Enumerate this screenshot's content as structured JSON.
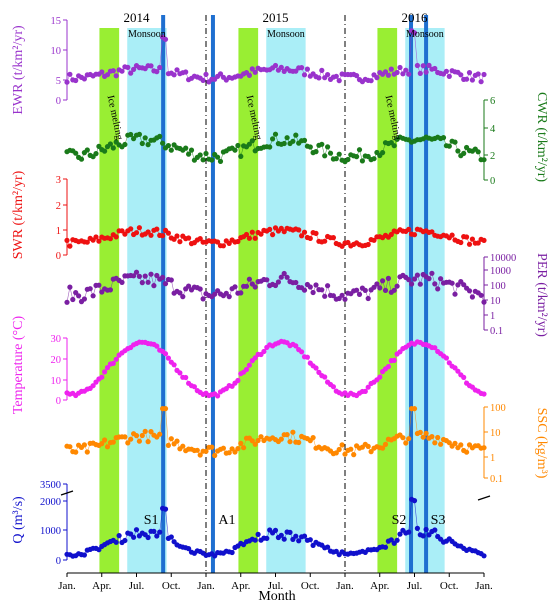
{
  "chart_data": {
    "type": "scatter",
    "title": "",
    "xlabel": "Month",
    "x_ticks": [
      "Jan.",
      "Apr.",
      "Jul.",
      "Oct.",
      "Jan.",
      "Apr.",
      "Jul.",
      "Oct.",
      "Jan.",
      "Apr.",
      "Jul.",
      "Oct.",
      "Jan."
    ],
    "years": [
      "2014",
      "2015",
      "2016"
    ],
    "season_labels": {
      "monsoon": "Monsoon",
      "ice_melting": "Ice melting"
    },
    "events": [
      "S1",
      "A1",
      "S2",
      "S3"
    ],
    "colors": {
      "EWR": "#9933cc",
      "CWR": "#1a7a1a",
      "SWR": "#ee1111",
      "PER": "#7a1fa2",
      "Temperature": "#ee22ee",
      "SSC": "#ff8800",
      "Q": "#1010cc",
      "monsoon_band": "#aaeef7",
      "ice_melting_band": "#99ee33",
      "event_line": "#1f6fd0"
    },
    "panels": [
      {
        "key": "EWR",
        "label": "EWR (t/km²/yr)",
        "side": "left",
        "ticks": [
          "15",
          "10",
          "5",
          "0"
        ],
        "typical_range": [
          1,
          9
        ]
      },
      {
        "key": "CWR",
        "label": "CWR (t/km²/yr)",
        "side": "right",
        "ticks": [
          "6",
          "4",
          "2",
          "0"
        ],
        "typical_range": [
          0.5,
          4
        ]
      },
      {
        "key": "SWR",
        "label": "SWR (t/km²/yr)",
        "side": "left",
        "ticks": [
          "3",
          "2",
          "1",
          "0"
        ],
        "typical_range": [
          0.2,
          2.2
        ]
      },
      {
        "key": "PER",
        "label": "PER (t/km²/yr)",
        "side": "right",
        "ticks": [
          "10000",
          "1000",
          "100",
          "10",
          "1",
          "0.1"
        ],
        "typical_range": [
          5,
          1000
        ]
      },
      {
        "key": "Temperature",
        "label": "Temperature (°C)",
        "side": "left",
        "ticks": [
          "30",
          "20",
          "10",
          "0"
        ],
        "typical_range": [
          1,
          30
        ]
      },
      {
        "key": "SSC",
        "label": "SSC (kg/m³)",
        "side": "right",
        "ticks": [
          "100",
          "10",
          "1",
          "0.1"
        ],
        "typical_range": [
          0.2,
          100
        ]
      },
      {
        "key": "Q",
        "label": "Q (m³/s)",
        "side": "left",
        "ticks": [
          "3500",
          "2000",
          "1000",
          "0"
        ],
        "typical_range": [
          200,
          3000
        ]
      }
    ],
    "legend": "none"
  }
}
